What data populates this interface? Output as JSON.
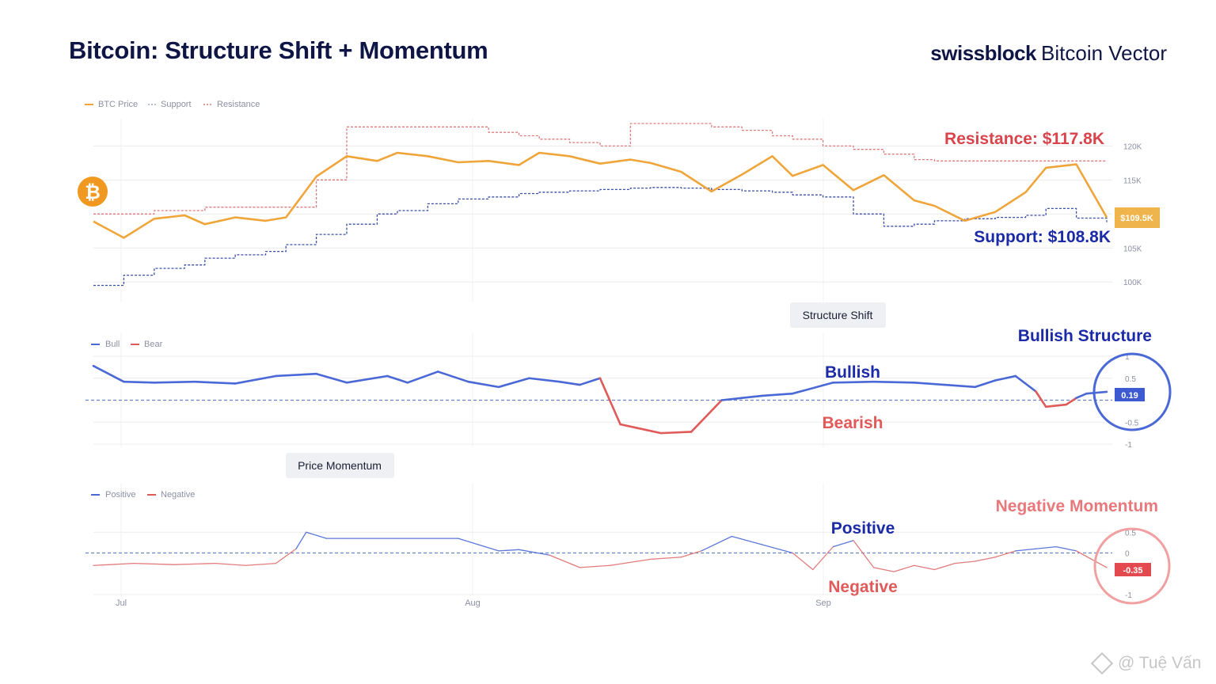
{
  "header": {
    "title": "Bitcoin: Structure Shift + Momentum",
    "brand_bold": "swissblock",
    "brand_rest": "Bitcoin Vector"
  },
  "colors": {
    "price": "#f0a53a",
    "support": "#3a4fa8",
    "resistance": "#e07a7a",
    "bull": "#4a68d6",
    "bear": "#e05a5a",
    "navy": "#1b2aa6",
    "red_text": "#d9434b",
    "grid": "#ececec",
    "axis_text": "#8b8fa3"
  },
  "x_axis": {
    "tick_labels": [
      "Jul",
      "Aug",
      "Sep"
    ]
  },
  "badges": {
    "structure": "Structure Shift",
    "momentum": "Price Momentum"
  },
  "watermark": "@ Tuệ Vấn",
  "chart_data": [
    {
      "type": "line",
      "name": "price-panel",
      "legend": [
        "BTC Price",
        "Support",
        "Resistance"
      ],
      "y_ticks": [
        "100K",
        "105K",
        "110K",
        "115K",
        "120K"
      ],
      "ylim": [
        97,
        124
      ],
      "x": [
        0,
        3,
        6,
        9,
        11,
        14,
        17,
        19,
        22,
        25,
        28,
        30,
        33,
        36,
        39,
        42,
        44,
        47,
        50,
        53,
        55,
        58,
        61,
        64,
        67,
        69,
        72,
        75,
        78,
        81,
        83,
        86,
        89,
        92,
        94,
        97,
        100
      ],
      "series": [
        {
          "name": "BTC Price",
          "values": [
            108.9,
            106.5,
            109.3,
            109.8,
            108.5,
            109.5,
            109.0,
            109.5,
            115.5,
            118.5,
            117.8,
            119.0,
            118.5,
            117.6,
            117.8,
            117.2,
            119.0,
            118.5,
            117.4,
            118.0,
            117.5,
            116.2,
            113.3,
            115.8,
            118.5,
            115.6,
            117.2,
            113.5,
            115.7,
            112.0,
            111.2,
            109.0,
            110.3,
            113.2,
            116.8,
            117.3,
            109.5
          ]
        },
        {
          "name": "Support",
          "values": [
            99.5,
            101.0,
            102.0,
            102.5,
            103.5,
            104.0,
            104.5,
            105.5,
            107.0,
            108.5,
            110.0,
            110.5,
            111.5,
            112.2,
            112.5,
            113.0,
            113.2,
            113.4,
            113.6,
            113.8,
            113.9,
            113.8,
            113.6,
            113.4,
            113.2,
            112.8,
            112.5,
            110.0,
            108.2,
            108.5,
            109.0,
            109.3,
            109.5,
            109.8,
            110.8,
            109.4,
            108.8
          ]
        },
        {
          "name": "Resistance",
          "values": [
            110.0,
            110.0,
            110.5,
            110.5,
            111.0,
            111.0,
            111.0,
            111.0,
            115.0,
            122.8,
            122.8,
            122.8,
            122.8,
            122.8,
            122.0,
            121.5,
            121.0,
            120.5,
            120.0,
            123.3,
            123.3,
            123.3,
            122.8,
            122.3,
            121.5,
            121.0,
            120.0,
            119.5,
            118.8,
            118.0,
            117.8,
            117.8,
            117.8,
            117.8,
            117.8,
            117.8,
            117.8
          ]
        }
      ],
      "annotations": {
        "resistance": "Resistance: $117.8K",
        "support": "Support: $108.8K",
        "last_price": "$109.5K"
      }
    },
    {
      "type": "line",
      "name": "structure-panel",
      "legend": [
        "Bull",
        "Bear"
      ],
      "y_ticks": [
        "-1",
        "-0.5",
        "0.5",
        "1"
      ],
      "ylim": [
        -1,
        1
      ],
      "x": [
        0,
        3,
        6,
        10,
        14,
        18,
        22,
        25,
        29,
        31,
        34,
        37,
        40,
        43,
        46,
        48,
        50,
        52,
        54,
        56,
        59,
        62,
        64,
        66,
        69,
        73,
        77,
        81,
        84,
        87,
        89,
        91,
        93,
        94,
        96,
        97,
        98,
        100
      ],
      "values": [
        0.78,
        0.42,
        0.4,
        0.42,
        0.38,
        0.55,
        0.6,
        0.4,
        0.55,
        0.4,
        0.65,
        0.42,
        0.3,
        0.5,
        0.42,
        0.35,
        0.5,
        -0.55,
        -0.65,
        -0.75,
        -0.72,
        0.0,
        0.05,
        0.1,
        0.15,
        0.4,
        0.42,
        0.4,
        0.35,
        0.3,
        0.45,
        0.55,
        0.2,
        -0.15,
        -0.1,
        0.05,
        0.15,
        0.19
      ],
      "annotations": {
        "bullish": "Bullish",
        "bearish": "Bearish",
        "bullish_structure": "Bullish Structure",
        "last_value": "0.19"
      }
    },
    {
      "type": "line",
      "name": "momentum-panel",
      "legend": [
        "Positive",
        "Negative"
      ],
      "y_ticks": [
        "-1",
        "0",
        "0.5"
      ],
      "ylim": [
        -1,
        0.6
      ],
      "x": [
        0,
        4,
        8,
        12,
        15,
        18,
        20,
        21,
        23,
        25,
        30,
        36,
        40,
        42,
        45,
        48,
        51,
        55,
        58,
        60,
        63,
        66,
        69,
        71,
        73,
        75,
        77,
        79,
        81,
        83,
        85,
        87,
        89,
        91,
        93,
        95,
        97,
        100
      ],
      "values": [
        -0.3,
        -0.25,
        -0.28,
        -0.25,
        -0.3,
        -0.25,
        0.1,
        0.5,
        0.35,
        0.35,
        0.35,
        0.35,
        0.05,
        0.08,
        -0.05,
        -0.35,
        -0.3,
        -0.15,
        -0.1,
        0.05,
        0.4,
        0.2,
        0.0,
        -0.4,
        0.15,
        0.3,
        -0.35,
        -0.45,
        -0.3,
        -0.4,
        -0.25,
        -0.2,
        -0.1,
        0.05,
        0.1,
        0.15,
        0.05,
        -0.35
      ],
      "annotations": {
        "positive": "Positive",
        "negative": "Negative",
        "negative_momentum": "Negative Momentum",
        "last_value": "-0.35"
      }
    }
  ]
}
